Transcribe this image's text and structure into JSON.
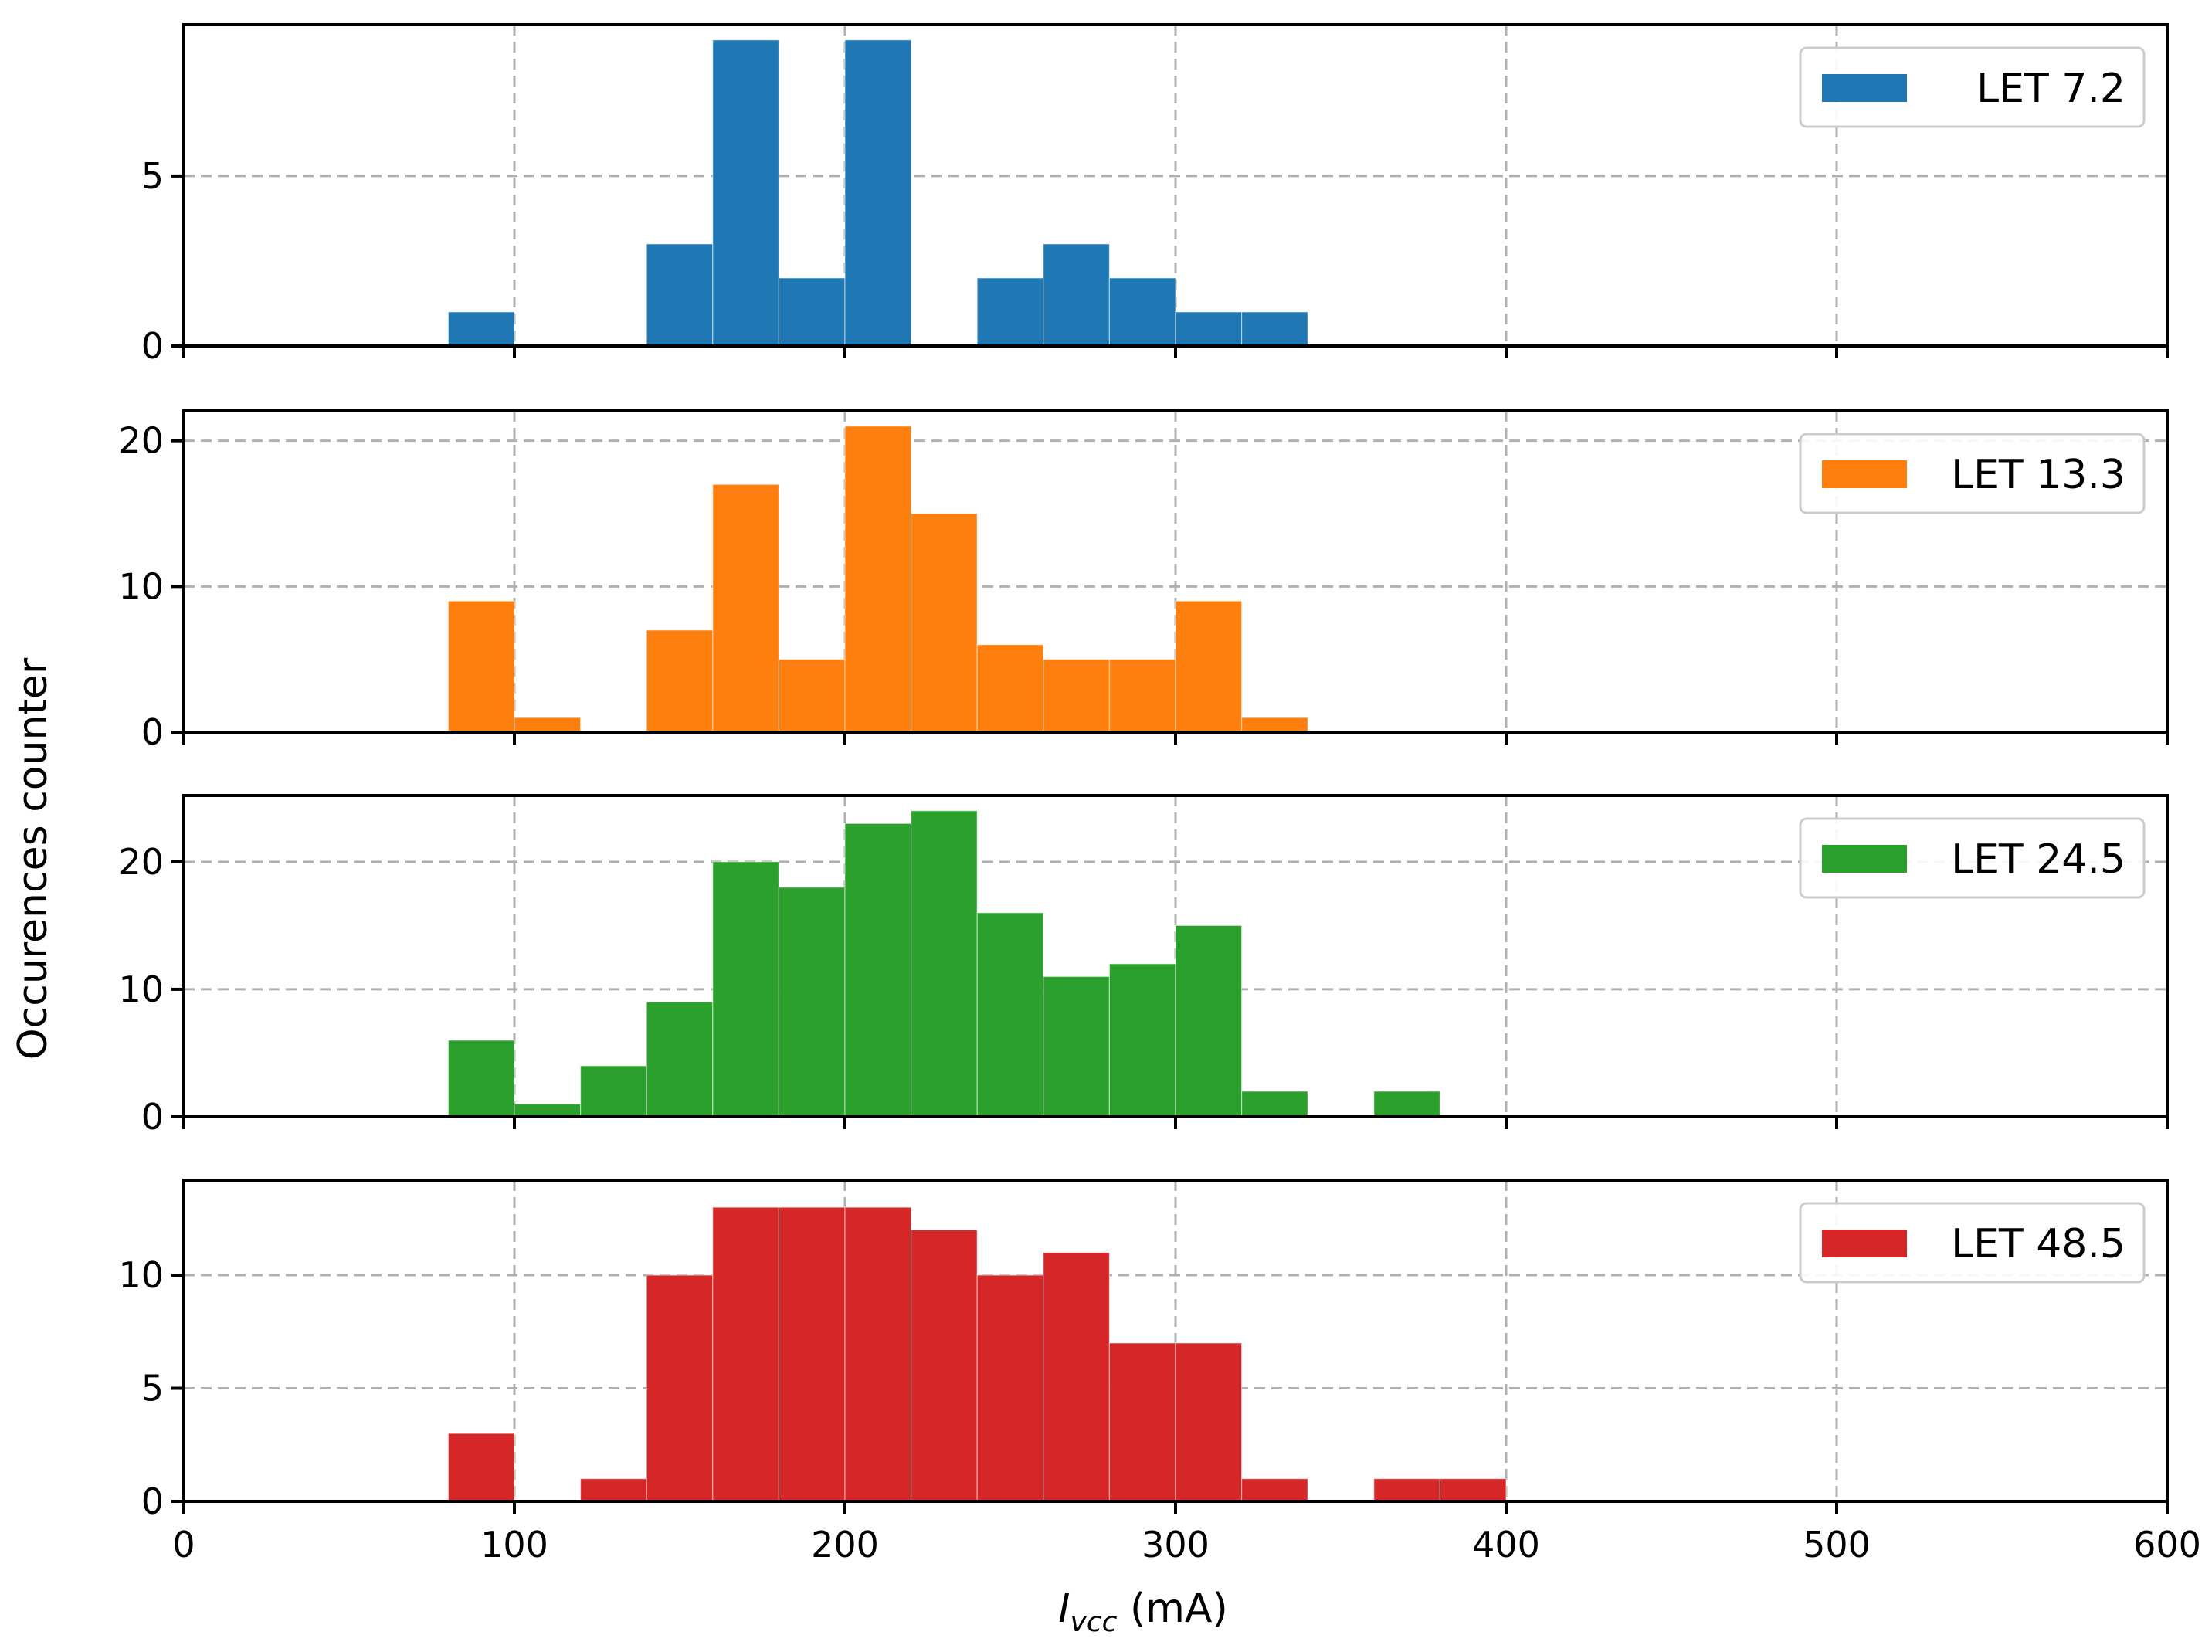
{
  "chart_data": {
    "type": "bar",
    "subtype": "histogram",
    "bin_width": 20,
    "xlim": [
      0,
      600
    ],
    "xticks": [
      0,
      100,
      200,
      300,
      400,
      500,
      600
    ],
    "xlabel_symbol": "I",
    "xlabel_subscript": "vcc",
    "xlabel_unit": " (mA)",
    "ylabel": "Occurences counter",
    "grid": true,
    "legend_position": "top-right",
    "panels": [
      {
        "name": "LET 7.2",
        "color": "#1f77b4",
        "ylim": [
          0,
          9.45
        ],
        "yticks": [
          0,
          5
        ],
        "bins": [
          [
            80,
            1
          ],
          [
            140,
            3
          ],
          [
            160,
            9
          ],
          [
            180,
            2
          ],
          [
            200,
            9
          ],
          [
            240,
            2
          ],
          [
            260,
            3
          ],
          [
            280,
            2
          ],
          [
            300,
            1
          ],
          [
            320,
            1
          ]
        ]
      },
      {
        "name": "LET 13.3",
        "color": "#ff7f0e",
        "ylim": [
          0,
          22.05
        ],
        "yticks": [
          0,
          10,
          20
        ],
        "bins": [
          [
            80,
            9
          ],
          [
            100,
            1
          ],
          [
            140,
            7
          ],
          [
            160,
            17
          ],
          [
            180,
            5
          ],
          [
            200,
            21
          ],
          [
            220,
            15
          ],
          [
            240,
            6
          ],
          [
            260,
            5
          ],
          [
            280,
            5
          ],
          [
            300,
            9
          ],
          [
            320,
            1
          ]
        ]
      },
      {
        "name": "LET 24.5",
        "color": "#2ca02c",
        "ylim": [
          0,
          25.2
        ],
        "yticks": [
          0,
          10,
          20
        ],
        "bins": [
          [
            80,
            6
          ],
          [
            100,
            1
          ],
          [
            120,
            4
          ],
          [
            140,
            9
          ],
          [
            160,
            20
          ],
          [
            180,
            18
          ],
          [
            200,
            23
          ],
          [
            220,
            24
          ],
          [
            240,
            16
          ],
          [
            260,
            11
          ],
          [
            280,
            12
          ],
          [
            300,
            15
          ],
          [
            320,
            2
          ],
          [
            360,
            2
          ]
        ]
      },
      {
        "name": "LET 48.5",
        "color": "#d62728",
        "ylim": [
          0,
          14.2
        ],
        "yticks": [
          0,
          5,
          10
        ],
        "bins": [
          [
            80,
            3
          ],
          [
            120,
            1
          ],
          [
            140,
            10
          ],
          [
            160,
            13
          ],
          [
            180,
            13
          ],
          [
            200,
            13
          ],
          [
            220,
            12
          ],
          [
            240,
            10
          ],
          [
            260,
            11
          ],
          [
            280,
            7
          ],
          [
            300,
            7
          ],
          [
            320,
            1
          ],
          [
            360,
            1
          ],
          [
            380,
            1
          ]
        ]
      }
    ]
  }
}
